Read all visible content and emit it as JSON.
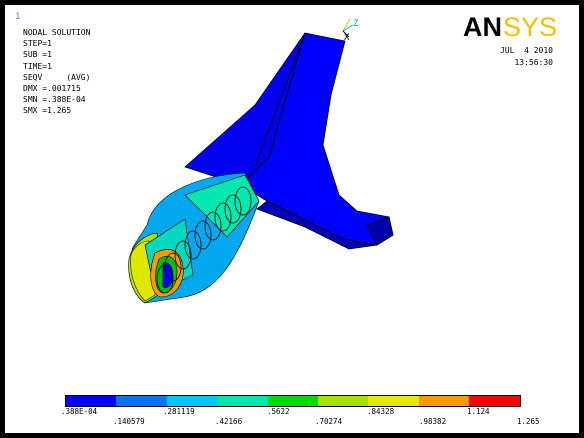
{
  "window": {
    "number": "1"
  },
  "info": {
    "title": "NODAL SOLUTION",
    "lines": [
      "STEP=1",
      "SUB =1",
      "TIME=1",
      "SEQV     (AVG)",
      "DMX =.001715",
      "SMN =.388E-04",
      "SMX =1.265"
    ]
  },
  "brand": {
    "logo": "ANSYS"
  },
  "datetime": {
    "date": "JUL  4 2010",
    "time": "13:56:30"
  },
  "triad": {
    "z_label": "Z",
    "x_label": "X"
  },
  "legend": {
    "colors": [
      "#0000ff",
      "#0077ee",
      "#00c8ff",
      "#00e8b0",
      "#00dd00",
      "#a8e000",
      "#e8e800",
      "#ff9900",
      "#ff0000"
    ],
    "labels_bottom": [
      ".388E-04",
      ".281119",
      ".5622",
      ".84328",
      "1.124"
    ],
    "labels_top": [
      ".140579",
      ".42166",
      ".70274",
      ".98382",
      "1.265"
    ]
  }
}
